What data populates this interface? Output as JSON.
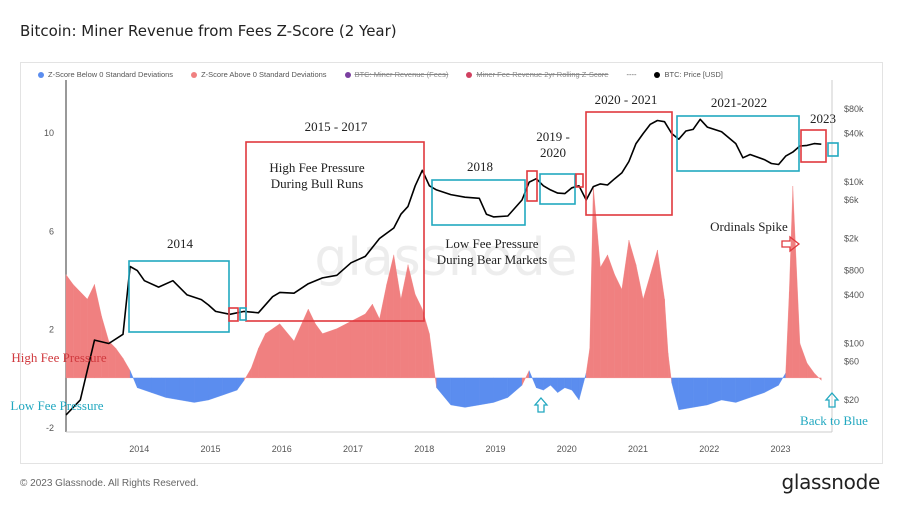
{
  "header": {
    "title": "Bitcoin: Miner Revenue from Fees Z-Score (2 Year)"
  },
  "legend": [
    {
      "label": "Z-Score Below 0 Standard Deviations",
      "color": "#5b8def",
      "struck": false
    },
    {
      "label": "Z-Score Above 0 Standard Deviations",
      "color": "#f08080",
      "struck": false
    },
    {
      "label": "BTC: Miner Revenue (Fees)",
      "color": "#7a3fa0",
      "struck": true
    },
    {
      "label": "Miner Fee Revenue 2yr Rolling Z-Score",
      "color": "#d04060",
      "struck": true
    },
    {
      "label": "----",
      "color": "#999999",
      "struck": false
    },
    {
      "label": "BTC: Price [USD]",
      "color": "#000000",
      "struck": false
    }
  ],
  "footer": {
    "copyright": "© 2023 Glassnode. All Rights Reserved.",
    "brand": "glassnode"
  },
  "watermark": "glassnode",
  "colors": {
    "positive": "#f08080",
    "negative": "#5b8def",
    "box_red": "#e0393e",
    "box_blue": "#22a8c0",
    "price": "#000000"
  },
  "annotations": {
    "high_fee_bull": "High Fee Pressure During Bull Runs",
    "low_fee_bear": "Low Fee Pressure During Bear Markets",
    "ordinals": "Ordinals Spike",
    "back_to_blue": "Back to Blue",
    "high_fee_pressure": "High Fee Pressure",
    "low_fee_pressure": "Low Fee Pressure",
    "label_2014": "2014",
    "label_2015_2017": "2015 - 2017",
    "label_2018": "2018",
    "label_2019_2020": "2019 - 2020",
    "label_2020_2021": "2020 - 2021",
    "label_2021_2022": "2021-2022",
    "label_2023": "2023"
  },
  "chart_data": {
    "type": "area",
    "x_ticks": [
      "2014",
      "2015",
      "2016",
      "2017",
      "2018",
      "2019",
      "2020",
      "2021",
      "2022",
      "2023"
    ],
    "xlim": [
      2013.0,
      2023.75
    ],
    "y_left": {
      "ticks": [
        10,
        6,
        2,
        -2
      ],
      "ylim": [
        -2.2,
        11.5
      ]
    },
    "y_right": {
      "scale": "log",
      "ticks": [
        "$80k",
        "$40k",
        "$10k",
        "$6k",
        "$2k",
        "$800",
        "$400",
        "$100",
        "$60",
        "$20"
      ],
      "values": [
        80000,
        40000,
        10000,
        6000,
        2000,
        800,
        400,
        100,
        60,
        20
      ],
      "ylim": [
        8,
        120000
      ]
    },
    "series": [
      {
        "name": "Z-Score",
        "x": [
          2013.0,
          2013.1,
          2013.2,
          2013.3,
          2013.4,
          2013.5,
          2013.6,
          2013.7,
          2013.8,
          2013.9,
          2014.0,
          2014.2,
          2014.4,
          2014.6,
          2014.8,
          2015.0,
          2015.2,
          2015.4,
          2015.5,
          2015.6,
          2015.7,
          2015.8,
          2016.0,
          2016.2,
          2016.4,
          2016.5,
          2016.6,
          2016.8,
          2017.0,
          2017.2,
          2017.3,
          2017.4,
          2017.5,
          2017.6,
          2017.7,
          2017.8,
          2017.9,
          2018.0,
          2018.1,
          2018.2,
          2018.4,
          2018.6,
          2018.8,
          2019.0,
          2019.2,
          2019.4,
          2019.5,
          2019.6,
          2019.7,
          2019.8,
          2019.9,
          2020.0,
          2020.1,
          2020.2,
          2020.3,
          2020.35,
          2020.4,
          2020.5,
          2020.6,
          2020.7,
          2020.8,
          2020.9,
          2021.0,
          2021.1,
          2021.2,
          2021.3,
          2021.4,
          2021.45,
          2021.5,
          2021.6,
          2021.8,
          2022.0,
          2022.2,
          2022.4,
          2022.6,
          2022.8,
          2023.0,
          2023.1,
          2023.15,
          2023.2,
          2023.3,
          2023.4,
          2023.5,
          2023.6
        ],
        "values": [
          4.2,
          3.8,
          3.5,
          3.2,
          3.8,
          2.5,
          1.5,
          1.2,
          0.8,
          0.3,
          -0.4,
          -0.6,
          -0.8,
          -0.9,
          -1.0,
          -0.9,
          -0.7,
          -0.5,
          -0.1,
          0.4,
          1.2,
          1.8,
          2.2,
          1.5,
          2.8,
          2.2,
          1.8,
          2.0,
          2.3,
          2.6,
          3.0,
          2.4,
          3.8,
          5.0,
          3.2,
          4.6,
          3.4,
          2.8,
          1.8,
          -0.4,
          -1.1,
          -1.2,
          -1.1,
          -1.0,
          -0.8,
          -0.3,
          0.3,
          -0.4,
          -0.5,
          -0.3,
          -0.6,
          -0.4,
          -0.5,
          -0.9,
          0.2,
          1.2,
          7.8,
          4.5,
          5.0,
          4.2,
          3.6,
          5.6,
          4.6,
          3.2,
          4.2,
          5.2,
          3.2,
          1.0,
          -0.2,
          -1.3,
          -1.2,
          -1.1,
          -0.9,
          -1.0,
          -0.8,
          -0.6,
          -0.3,
          0.2,
          3.5,
          7.8,
          1.4,
          0.6,
          0.2,
          -0.1
        ]
      },
      {
        "name": "BTC: Price [USD]",
        "x": [
          2013.0,
          2013.2,
          2013.4,
          2013.6,
          2013.8,
          2013.9,
          2014.0,
          2014.1,
          2014.3,
          2014.5,
          2014.7,
          2014.9,
          2015.0,
          2015.1,
          2015.3,
          2015.5,
          2015.7,
          2015.9,
          2016.0,
          2016.2,
          2016.4,
          2016.6,
          2016.8,
          2017.0,
          2017.2,
          2017.4,
          2017.6,
          2017.7,
          2017.8,
          2017.9,
          2018.0,
          2018.1,
          2018.2,
          2018.4,
          2018.6,
          2018.8,
          2018.9,
          2019.0,
          2019.2,
          2019.4,
          2019.5,
          2019.6,
          2019.7,
          2019.8,
          2019.9,
          2020.0,
          2020.1,
          2020.2,
          2020.3,
          2020.4,
          2020.5,
          2020.6,
          2020.7,
          2020.8,
          2020.9,
          2021.0,
          2021.1,
          2021.2,
          2021.3,
          2021.4,
          2021.5,
          2021.6,
          2021.7,
          2021.8,
          2021.9,
          2022.0,
          2022.2,
          2022.4,
          2022.5,
          2022.6,
          2022.8,
          2022.9,
          2023.0,
          2023.1,
          2023.2,
          2023.3,
          2023.4,
          2023.5,
          2023.6
        ],
        "values": [
          13,
          20,
          110,
          100,
          130,
          900,
          800,
          600,
          500,
          600,
          400,
          350,
          300,
          250,
          230,
          250,
          240,
          380,
          430,
          420,
          550,
          650,
          700,
          1000,
          1200,
          2000,
          2700,
          4000,
          5000,
          9000,
          14000,
          9000,
          8000,
          7000,
          6500,
          6300,
          4000,
          3700,
          3800,
          6000,
          10000,
          11000,
          9000,
          8000,
          7300,
          7200,
          8500,
          9000,
          6000,
          8800,
          9500,
          9200,
          11000,
          13000,
          18000,
          30000,
          40000,
          52000,
          58000,
          56000,
          40000,
          34000,
          43000,
          45000,
          60000,
          48000,
          42000,
          30000,
          20000,
          22000,
          19000,
          17000,
          16500,
          21000,
          23500,
          28000,
          28500,
          30000,
          29500
        ]
      }
    ]
  }
}
